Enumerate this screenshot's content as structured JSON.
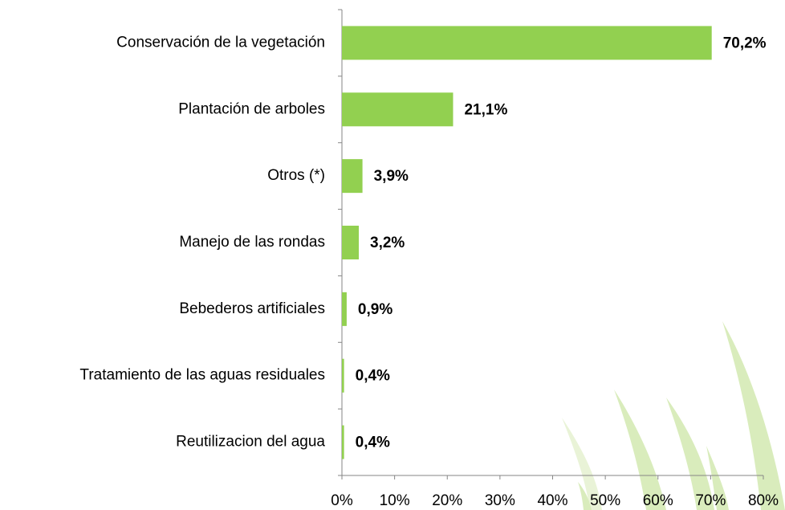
{
  "chart_data": {
    "type": "bar",
    "orientation": "horizontal",
    "categories": [
      "Conservación de la vegetación",
      "Plantación de arboles",
      "Otros (*)",
      "Manejo de las rondas",
      "Bebederos artificiales",
      "Tratamiento de las aguas residuales",
      "Reutilizacion del agua"
    ],
    "values": [
      70.2,
      21.1,
      3.9,
      3.2,
      0.9,
      0.4,
      0.4
    ],
    "value_labels": [
      "70,2%",
      "21,1%",
      "3,9%",
      "3,2%",
      "0,9%",
      "0,4%",
      "0,4%"
    ],
    "color": "#92d050",
    "xlim": [
      0,
      80
    ],
    "xticks": [
      {
        "value": 0,
        "label": "0%"
      },
      {
        "value": 10,
        "label": "10%"
      },
      {
        "value": 20,
        "label": "20%"
      },
      {
        "value": 30,
        "label": "30%"
      },
      {
        "value": 40,
        "label": "40%"
      },
      {
        "value": 50,
        "label": "50%"
      },
      {
        "value": 60,
        "label": "60%"
      },
      {
        "value": 70,
        "label": "70%"
      },
      {
        "value": 80,
        "label": "80%"
      }
    ],
    "grid": false
  }
}
